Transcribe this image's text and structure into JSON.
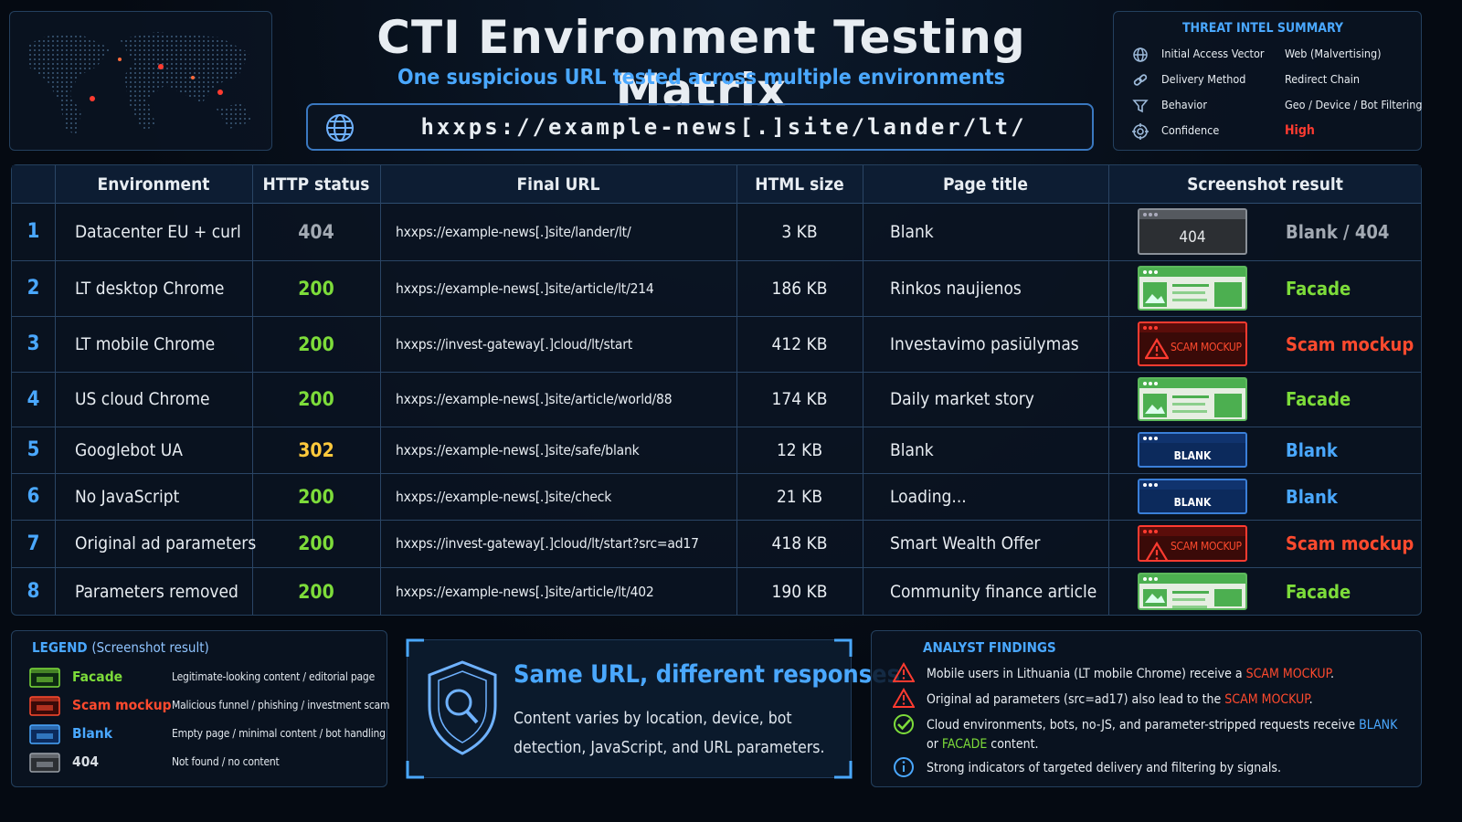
{
  "header": {
    "title": "CTI Environment Testing Matrix",
    "subtitle": "One suspicious URL tested across multiple environments",
    "url": "hxxps://example-news[.]site/lander/lt/"
  },
  "summary": {
    "title": "THREAT INTEL SUMMARY",
    "rows": [
      {
        "label": "Initial Access Vector",
        "value": "Web (Malvertising)"
      },
      {
        "label": "Delivery Method",
        "value": "Redirect Chain"
      },
      {
        "label": "Behavior",
        "value": "Geo / Device / Bot Filtering"
      },
      {
        "label": "Confidence",
        "value": "High",
        "color": "#ff3b30"
      }
    ]
  },
  "table": {
    "columns": [
      "Environment",
      "HTTP status",
      "Final URL",
      "HTML size",
      "Page title",
      "Screenshot result"
    ],
    "rows": [
      {
        "num": "1",
        "environment": "Datacenter EU + curl",
        "status": 404,
        "status_color": "#a3aab3",
        "final_url": "hxxps://example-news[.]site/lander/lt/",
        "size": "3 KB",
        "title": "Blank",
        "kind": "404",
        "thumb_label": "404",
        "result": "Blank / 404",
        "result_color": "#a3aab3"
      },
      {
        "num": "2",
        "environment": "LT desktop Chrome",
        "status": 200,
        "status_color": "#7ddc3a",
        "final_url": "hxxps://example-news[.]site/article/lt/214",
        "size": "186 KB",
        "title": "Rinkos naujienos",
        "kind": "facade",
        "result": "Facade",
        "result_color": "#7ddc3a"
      },
      {
        "num": "3",
        "environment": "LT mobile Chrome",
        "status": 200,
        "status_color": "#7ddc3a",
        "final_url": "hxxps://invest-gateway[.]cloud/lt/start",
        "size": "412 KB",
        "title": "Investavimo pasiūlymas",
        "kind": "scam",
        "thumb_label": "SCAM MOCKUP",
        "result": "Scam mockup",
        "result_color": "#ff4a2e"
      },
      {
        "num": "4",
        "environment": "US cloud Chrome",
        "status": 200,
        "status_color": "#7ddc3a",
        "final_url": "hxxps://example-news[.]site/article/world/88",
        "size": "174 KB",
        "title": "Daily market story",
        "kind": "facade",
        "result": "Facade",
        "result_color": "#7ddc3a"
      },
      {
        "num": "5",
        "environment": "Googlebot UA",
        "status": 302,
        "status_color": "#ffc93c",
        "final_url": "hxxps://example-news[.]site/safe/blank",
        "size": "12 KB",
        "title": "Blank",
        "kind": "blank",
        "thumb_label": "BLANK",
        "result": "Blank",
        "result_color": "#4aa8ff"
      },
      {
        "num": "6",
        "environment": "No JavaScript",
        "status": 200,
        "status_color": "#7ddc3a",
        "final_url": "hxxps://example-news[.]site/check",
        "size": "21 KB",
        "title": "Loading...",
        "kind": "blank",
        "thumb_label": "BLANK",
        "result": "Blank",
        "result_color": "#4aa8ff"
      },
      {
        "num": "7",
        "environment": "Original ad parameters",
        "status": 200,
        "status_color": "#7ddc3a",
        "final_url": "hxxps://invest-gateway[.]cloud/lt/start?src=ad17",
        "size": "418 KB",
        "title": "Smart Wealth Offer",
        "kind": "scam",
        "thumb_label": "SCAM MOCKUP",
        "result": "Scam mockup",
        "result_color": "#ff4a2e"
      },
      {
        "num": "8",
        "environment": "Parameters removed",
        "status": 200,
        "status_color": "#7ddc3a",
        "final_url": "hxxps://example-news[.]site/article/lt/402",
        "size": "190 KB",
        "title": "Community finance article",
        "kind": "facade",
        "result": "Facade",
        "result_color": "#7ddc3a"
      }
    ]
  },
  "legend": {
    "title": "LEGEND",
    "subtitle": "(Screenshot result)",
    "items": [
      {
        "name": "Facade",
        "desc": "Legitimate-looking content / editorial page",
        "color": "#7ddc3a"
      },
      {
        "name": "Scam mockup",
        "desc": "Malicious funnel / phishing / investment scam",
        "color": "#ff4a2e"
      },
      {
        "name": "Blank",
        "desc": "Empty page / minimal content / bot handling",
        "color": "#4aa8ff"
      },
      {
        "name": "404",
        "desc": "Not found / no content",
        "color": "#d8dde3"
      }
    ]
  },
  "callout": {
    "title": "Same URL, different responses",
    "text": "Content varies by location, device, bot detection, JavaScript, and URL parameters."
  },
  "findings": {
    "title": "ANALYST FINDINGS",
    "items": [
      {
        "icon": "warning",
        "parts": [
          "Mobile users in Lithuania (LT mobile Chrome) receive a ",
          {
            "text": "SCAM MOCKUP",
            "color": "#ff4a2e"
          },
          "."
        ]
      },
      {
        "icon": "warning",
        "parts": [
          "Original ad parameters (src=ad17) also lead to the ",
          {
            "text": "SCAM MOCKUP",
            "color": "#ff4a2e"
          },
          "."
        ]
      },
      {
        "icon": "check",
        "parts": [
          "Cloud environments, bots, no-JS, and parameter-stripped requests receive ",
          {
            "text": "BLANK",
            "color": "#4aa8ff"
          },
          " or ",
          {
            "text": "FACADE",
            "color": "#7ddc3a"
          },
          " content."
        ]
      },
      {
        "icon": "info",
        "parts": [
          "Strong indicators of targeted delivery and filtering by signals."
        ]
      }
    ]
  }
}
